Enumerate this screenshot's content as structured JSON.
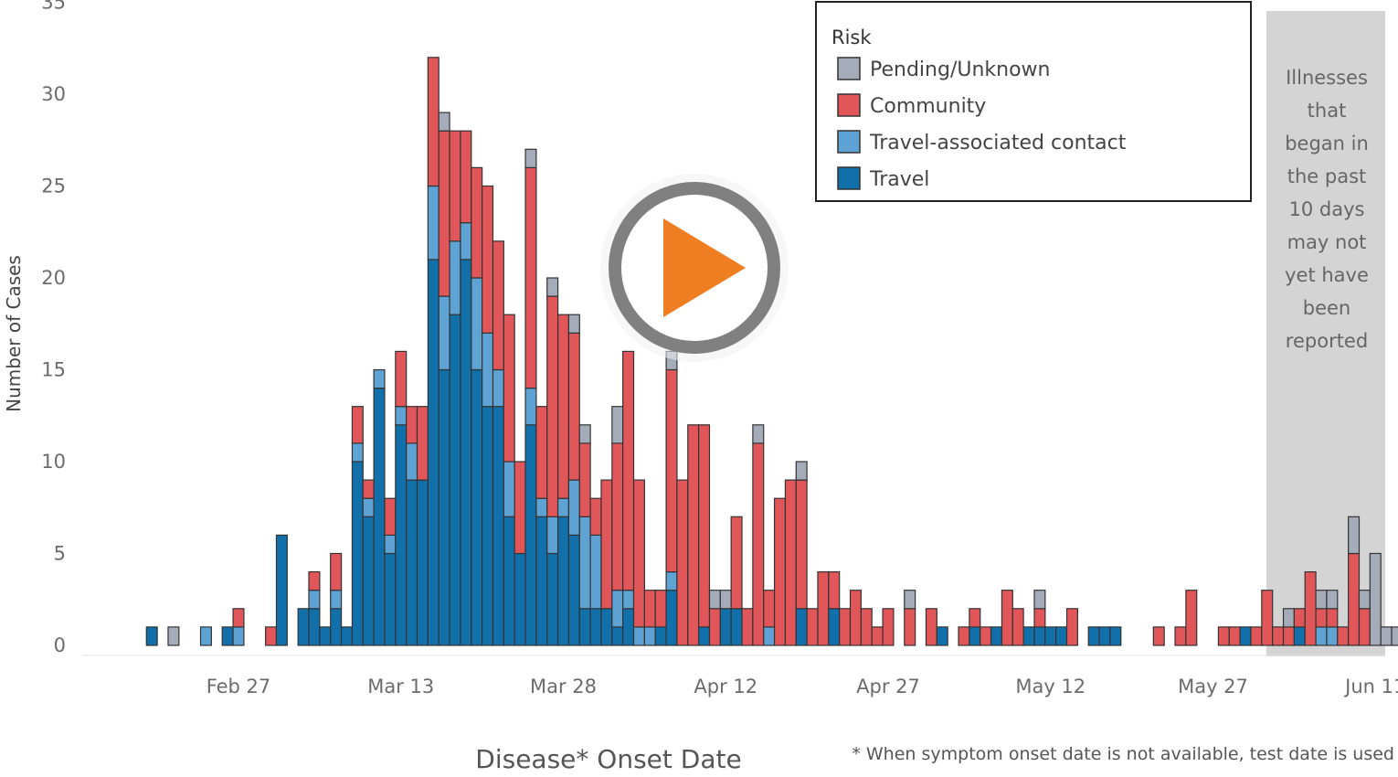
{
  "chart_data": {
    "type": "bar",
    "stacked": true,
    "title": "",
    "xlabel": "Disease* Onset Date",
    "ylabel": "Number of Cases",
    "footnote": "* When symptom onset date is not available, test date is used",
    "ylim": [
      0,
      35
    ],
    "y_ticks": [
      0,
      5,
      10,
      15,
      20,
      25,
      30,
      35
    ],
    "x_range": [
      "2020-02-17",
      "2020-06-12"
    ],
    "x_ticks": [
      {
        "date": "2020-02-27",
        "label": "Feb 27"
      },
      {
        "date": "2020-03-13",
        "label": "Mar 13"
      },
      {
        "date": "2020-03-28",
        "label": "Mar 28"
      },
      {
        "date": "2020-04-12",
        "label": "Apr 12"
      },
      {
        "date": "2020-04-27",
        "label": "Apr 27"
      },
      {
        "date": "2020-05-12",
        "label": "May 12"
      },
      {
        "date": "2020-05-27",
        "label": "May 27"
      },
      {
        "date": "2020-06-11",
        "label": "Jun 11"
      }
    ],
    "grid": false,
    "legend": {
      "title": "Risk",
      "position": "top-right",
      "entries": [
        {
          "name": "Pending/Unknown",
          "color": "#a4acb9"
        },
        {
          "name": "Community",
          "color": "#e15759"
        },
        {
          "name": "Travel-associated contact",
          "color": "#5fa2d4"
        },
        {
          "name": "Travel",
          "color": "#1170aa"
        }
      ]
    },
    "series_keys": [
      "Travel",
      "Travel-associated contact",
      "Community",
      "Pending/Unknown"
    ],
    "series_colors": {
      "Travel": "#1170aa",
      "Travel-associated contact": "#5fa2d4",
      "Community": "#e15759",
      "Pending/Unknown": "#a4acb9"
    },
    "reporting_window": {
      "start": "2020-06-02",
      "end": "2020-06-12",
      "text": [
        "Illnesses",
        "that",
        "began in",
        "the past",
        "10 days",
        "may not",
        "yet have",
        "been",
        "reported"
      ]
    },
    "bars": [
      {
        "date": "2020-02-19",
        "Travel": 1,
        "Travel-associated contact": 0,
        "Community": 0,
        "Pending/Unknown": 0
      },
      {
        "date": "2020-02-21",
        "Travel": 0,
        "Travel-associated contact": 0,
        "Community": 0,
        "Pending/Unknown": 1
      },
      {
        "date": "2020-02-24",
        "Travel": 0,
        "Travel-associated contact": 1,
        "Community": 0,
        "Pending/Unknown": 0
      },
      {
        "date": "2020-02-26",
        "Travel": 1,
        "Travel-associated contact": 0,
        "Community": 0,
        "Pending/Unknown": 0
      },
      {
        "date": "2020-02-27",
        "Travel": 0,
        "Travel-associated contact": 1,
        "Community": 1,
        "Pending/Unknown": 0
      },
      {
        "date": "2020-03-01",
        "Travel": 0,
        "Travel-associated contact": 0,
        "Community": 1,
        "Pending/Unknown": 0
      },
      {
        "date": "2020-03-02",
        "Travel": 6,
        "Travel-associated contact": 0,
        "Community": 0,
        "Pending/Unknown": 0
      },
      {
        "date": "2020-03-04",
        "Travel": 2,
        "Travel-associated contact": 0,
        "Community": 0,
        "Pending/Unknown": 0
      },
      {
        "date": "2020-03-05",
        "Travel": 2,
        "Travel-associated contact": 1,
        "Community": 1,
        "Pending/Unknown": 0
      },
      {
        "date": "2020-03-06",
        "Travel": 1,
        "Travel-associated contact": 0,
        "Community": 0,
        "Pending/Unknown": 0
      },
      {
        "date": "2020-03-07",
        "Travel": 2,
        "Travel-associated contact": 1,
        "Community": 2,
        "Pending/Unknown": 0
      },
      {
        "date": "2020-03-08",
        "Travel": 1,
        "Travel-associated contact": 0,
        "Community": 0,
        "Pending/Unknown": 0
      },
      {
        "date": "2020-03-09",
        "Travel": 10,
        "Travel-associated contact": 1,
        "Community": 2,
        "Pending/Unknown": 0
      },
      {
        "date": "2020-03-10",
        "Travel": 7,
        "Travel-associated contact": 1,
        "Community": 1,
        "Pending/Unknown": 0
      },
      {
        "date": "2020-03-11",
        "Travel": 14,
        "Travel-associated contact": 1,
        "Community": 0,
        "Pending/Unknown": 0
      },
      {
        "date": "2020-03-12",
        "Travel": 5,
        "Travel-associated contact": 1,
        "Community": 2,
        "Pending/Unknown": 0
      },
      {
        "date": "2020-03-13",
        "Travel": 12,
        "Travel-associated contact": 1,
        "Community": 3,
        "Pending/Unknown": 0
      },
      {
        "date": "2020-03-14",
        "Travel": 9,
        "Travel-associated contact": 2,
        "Community": 2,
        "Pending/Unknown": 0
      },
      {
        "date": "2020-03-15",
        "Travel": 9,
        "Travel-associated contact": 0,
        "Community": 4,
        "Pending/Unknown": 0
      },
      {
        "date": "2020-03-16",
        "Travel": 21,
        "Travel-associated contact": 4,
        "Community": 7,
        "Pending/Unknown": 0
      },
      {
        "date": "2020-03-17",
        "Travel": 15,
        "Travel-associated contact": 4,
        "Community": 9,
        "Pending/Unknown": 1
      },
      {
        "date": "2020-03-18",
        "Travel": 18,
        "Travel-associated contact": 4,
        "Community": 6,
        "Pending/Unknown": 0
      },
      {
        "date": "2020-03-19",
        "Travel": 21,
        "Travel-associated contact": 2,
        "Community": 5,
        "Pending/Unknown": 0
      },
      {
        "date": "2020-03-20",
        "Travel": 15,
        "Travel-associated contact": 5,
        "Community": 6,
        "Pending/Unknown": 0
      },
      {
        "date": "2020-03-21",
        "Travel": 13,
        "Travel-associated contact": 4,
        "Community": 8,
        "Pending/Unknown": 0
      },
      {
        "date": "2020-03-22",
        "Travel": 13,
        "Travel-associated contact": 2,
        "Community": 7,
        "Pending/Unknown": 0
      },
      {
        "date": "2020-03-23",
        "Travel": 7,
        "Travel-associated contact": 3,
        "Community": 8,
        "Pending/Unknown": 0
      },
      {
        "date": "2020-03-24",
        "Travel": 5,
        "Travel-associated contact": 0,
        "Community": 5,
        "Pending/Unknown": 0
      },
      {
        "date": "2020-03-25",
        "Travel": 12,
        "Travel-associated contact": 2,
        "Community": 12,
        "Pending/Unknown": 1
      },
      {
        "date": "2020-03-26",
        "Travel": 7,
        "Travel-associated contact": 1,
        "Community": 5,
        "Pending/Unknown": 0
      },
      {
        "date": "2020-03-27",
        "Travel": 5,
        "Travel-associated contact": 2,
        "Community": 12,
        "Pending/Unknown": 1
      },
      {
        "date": "2020-03-28",
        "Travel": 7,
        "Travel-associated contact": 1,
        "Community": 10,
        "Pending/Unknown": 0
      },
      {
        "date": "2020-03-29",
        "Travel": 6,
        "Travel-associated contact": 3,
        "Community": 8,
        "Pending/Unknown": 1
      },
      {
        "date": "2020-03-30",
        "Travel": 2,
        "Travel-associated contact": 5,
        "Community": 4,
        "Pending/Unknown": 1
      },
      {
        "date": "2020-03-31",
        "Travel": 2,
        "Travel-associated contact": 4,
        "Community": 2,
        "Pending/Unknown": 0
      },
      {
        "date": "2020-04-01",
        "Travel": 2,
        "Travel-associated contact": 0,
        "Community": 7,
        "Pending/Unknown": 0
      },
      {
        "date": "2020-04-02",
        "Travel": 1,
        "Travel-associated contact": 2,
        "Community": 8,
        "Pending/Unknown": 2
      },
      {
        "date": "2020-04-03",
        "Travel": 2,
        "Travel-associated contact": 1,
        "Community": 13,
        "Pending/Unknown": 0
      },
      {
        "date": "2020-04-04",
        "Travel": 0,
        "Travel-associated contact": 1,
        "Community": 8,
        "Pending/Unknown": 0
      },
      {
        "date": "2020-04-05",
        "Travel": 0,
        "Travel-associated contact": 1,
        "Community": 2,
        "Pending/Unknown": 0
      },
      {
        "date": "2020-04-06",
        "Travel": 1,
        "Travel-associated contact": 0,
        "Community": 2,
        "Pending/Unknown": 0
      },
      {
        "date": "2020-04-07",
        "Travel": 3,
        "Travel-associated contact": 1,
        "Community": 11,
        "Pending/Unknown": 1
      },
      {
        "date": "2020-04-08",
        "Travel": 0,
        "Travel-associated contact": 0,
        "Community": 9,
        "Pending/Unknown": 0
      },
      {
        "date": "2020-04-09",
        "Travel": 0,
        "Travel-associated contact": 0,
        "Community": 12,
        "Pending/Unknown": 0
      },
      {
        "date": "2020-04-10",
        "Travel": 1,
        "Travel-associated contact": 0,
        "Community": 11,
        "Pending/Unknown": 0
      },
      {
        "date": "2020-04-11",
        "Travel": 0,
        "Travel-associated contact": 0,
        "Community": 2,
        "Pending/Unknown": 1
      },
      {
        "date": "2020-04-12",
        "Travel": 2,
        "Travel-associated contact": 0,
        "Community": 0,
        "Pending/Unknown": 1
      },
      {
        "date": "2020-04-13",
        "Travel": 2,
        "Travel-associated contact": 0,
        "Community": 5,
        "Pending/Unknown": 0
      },
      {
        "date": "2020-04-14",
        "Travel": 0,
        "Travel-associated contact": 0,
        "Community": 2,
        "Pending/Unknown": 0
      },
      {
        "date": "2020-04-15",
        "Travel": 0,
        "Travel-associated contact": 0,
        "Community": 11,
        "Pending/Unknown": 1
      },
      {
        "date": "2020-04-16",
        "Travel": 0,
        "Travel-associated contact": 1,
        "Community": 2,
        "Pending/Unknown": 0
      },
      {
        "date": "2020-04-17",
        "Travel": 0,
        "Travel-associated contact": 0,
        "Community": 8,
        "Pending/Unknown": 0
      },
      {
        "date": "2020-04-18",
        "Travel": 0,
        "Travel-associated contact": 0,
        "Community": 9,
        "Pending/Unknown": 0
      },
      {
        "date": "2020-04-19",
        "Travel": 2,
        "Travel-associated contact": 0,
        "Community": 7,
        "Pending/Unknown": 1
      },
      {
        "date": "2020-04-20",
        "Travel": 0,
        "Travel-associated contact": 0,
        "Community": 2,
        "Pending/Unknown": 0
      },
      {
        "date": "2020-04-21",
        "Travel": 0,
        "Travel-associated contact": 0,
        "Community": 4,
        "Pending/Unknown": 0
      },
      {
        "date": "2020-04-22",
        "Travel": 2,
        "Travel-associated contact": 0,
        "Community": 2,
        "Pending/Unknown": 0
      },
      {
        "date": "2020-04-23",
        "Travel": 0,
        "Travel-associated contact": 0,
        "Community": 2,
        "Pending/Unknown": 0
      },
      {
        "date": "2020-04-24",
        "Travel": 0,
        "Travel-associated contact": 0,
        "Community": 3,
        "Pending/Unknown": 0
      },
      {
        "date": "2020-04-25",
        "Travel": 0,
        "Travel-associated contact": 0,
        "Community": 2,
        "Pending/Unknown": 0
      },
      {
        "date": "2020-04-26",
        "Travel": 0,
        "Travel-associated contact": 0,
        "Community": 1,
        "Pending/Unknown": 0
      },
      {
        "date": "2020-04-27",
        "Travel": 0,
        "Travel-associated contact": 0,
        "Community": 2,
        "Pending/Unknown": 0
      },
      {
        "date": "2020-04-29",
        "Travel": 0,
        "Travel-associated contact": 0,
        "Community": 2,
        "Pending/Unknown": 1
      },
      {
        "date": "2020-05-01",
        "Travel": 0,
        "Travel-associated contact": 0,
        "Community": 2,
        "Pending/Unknown": 0
      },
      {
        "date": "2020-05-02",
        "Travel": 1,
        "Travel-associated contact": 0,
        "Community": 0,
        "Pending/Unknown": 0
      },
      {
        "date": "2020-05-04",
        "Travel": 0,
        "Travel-associated contact": 0,
        "Community": 1,
        "Pending/Unknown": 0
      },
      {
        "date": "2020-05-05",
        "Travel": 1,
        "Travel-associated contact": 0,
        "Community": 1,
        "Pending/Unknown": 0
      },
      {
        "date": "2020-05-06",
        "Travel": 0,
        "Travel-associated contact": 0,
        "Community": 1,
        "Pending/Unknown": 0
      },
      {
        "date": "2020-05-07",
        "Travel": 1,
        "Travel-associated contact": 0,
        "Community": 0,
        "Pending/Unknown": 0
      },
      {
        "date": "2020-05-08",
        "Travel": 0,
        "Travel-associated contact": 0,
        "Community": 3,
        "Pending/Unknown": 0
      },
      {
        "date": "2020-05-09",
        "Travel": 0,
        "Travel-associated contact": 0,
        "Community": 2,
        "Pending/Unknown": 0
      },
      {
        "date": "2020-05-10",
        "Travel": 1,
        "Travel-associated contact": 0,
        "Community": 0,
        "Pending/Unknown": 0
      },
      {
        "date": "2020-05-11",
        "Travel": 1,
        "Travel-associated contact": 0,
        "Community": 1,
        "Pending/Unknown": 1
      },
      {
        "date": "2020-05-12",
        "Travel": 1,
        "Travel-associated contact": 0,
        "Community": 0,
        "Pending/Unknown": 0
      },
      {
        "date": "2020-05-13",
        "Travel": 1,
        "Travel-associated contact": 0,
        "Community": 0,
        "Pending/Unknown": 0
      },
      {
        "date": "2020-05-14",
        "Travel": 0,
        "Travel-associated contact": 0,
        "Community": 2,
        "Pending/Unknown": 0
      },
      {
        "date": "2020-05-16",
        "Travel": 1,
        "Travel-associated contact": 0,
        "Community": 0,
        "Pending/Unknown": 0
      },
      {
        "date": "2020-05-17",
        "Travel": 1,
        "Travel-associated contact": 0,
        "Community": 0,
        "Pending/Unknown": 0
      },
      {
        "date": "2020-05-18",
        "Travel": 1,
        "Travel-associated contact": 0,
        "Community": 0,
        "Pending/Unknown": 0
      },
      {
        "date": "2020-05-22",
        "Travel": 0,
        "Travel-associated contact": 0,
        "Community": 1,
        "Pending/Unknown": 0
      },
      {
        "date": "2020-05-24",
        "Travel": 0,
        "Travel-associated contact": 0,
        "Community": 1,
        "Pending/Unknown": 0
      },
      {
        "date": "2020-05-25",
        "Travel": 0,
        "Travel-associated contact": 0,
        "Community": 3,
        "Pending/Unknown": 0
      },
      {
        "date": "2020-05-28",
        "Travel": 0,
        "Travel-associated contact": 0,
        "Community": 1,
        "Pending/Unknown": 0
      },
      {
        "date": "2020-05-29",
        "Travel": 0,
        "Travel-associated contact": 0,
        "Community": 1,
        "Pending/Unknown": 0
      },
      {
        "date": "2020-05-30",
        "Travel": 1,
        "Travel-associated contact": 0,
        "Community": 0,
        "Pending/Unknown": 0
      },
      {
        "date": "2020-05-31",
        "Travel": 0,
        "Travel-associated contact": 0,
        "Community": 1,
        "Pending/Unknown": 0
      },
      {
        "date": "2020-06-01",
        "Travel": 0,
        "Travel-associated contact": 0,
        "Community": 3,
        "Pending/Unknown": 0
      },
      {
        "date": "2020-06-02",
        "Travel": 0,
        "Travel-associated contact": 0,
        "Community": 1,
        "Pending/Unknown": 0
      },
      {
        "date": "2020-06-03",
        "Travel": 0,
        "Travel-associated contact": 0,
        "Community": 1,
        "Pending/Unknown": 1
      },
      {
        "date": "2020-06-04",
        "Travel": 1,
        "Travel-associated contact": 0,
        "Community": 1,
        "Pending/Unknown": 0
      },
      {
        "date": "2020-06-05",
        "Travel": 0,
        "Travel-associated contact": 0,
        "Community": 4,
        "Pending/Unknown": 0
      },
      {
        "date": "2020-06-06",
        "Travel": 0,
        "Travel-associated contact": 1,
        "Community": 1,
        "Pending/Unknown": 1
      },
      {
        "date": "2020-06-07",
        "Travel": 0,
        "Travel-associated contact": 1,
        "Community": 1,
        "Pending/Unknown": 1
      },
      {
        "date": "2020-06-08",
        "Travel": 0,
        "Travel-associated contact": 0,
        "Community": 1,
        "Pending/Unknown": 0
      },
      {
        "date": "2020-06-09",
        "Travel": 0,
        "Travel-associated contact": 0,
        "Community": 5,
        "Pending/Unknown": 2
      },
      {
        "date": "2020-06-10",
        "Travel": 0,
        "Travel-associated contact": 0,
        "Community": 2,
        "Pending/Unknown": 1
      },
      {
        "date": "2020-06-11",
        "Travel": 0,
        "Travel-associated contact": 0,
        "Community": 0,
        "Pending/Unknown": 5
      },
      {
        "date": "2020-06-12",
        "Travel": 0,
        "Travel-associated contact": 0,
        "Community": 0,
        "Pending/Unknown": 1
      },
      {
        "date": "2020-06-13",
        "Travel": 0,
        "Travel-associated contact": 0,
        "Community": 0,
        "Pending/Unknown": 1
      }
    ]
  },
  "player": {
    "play_icon": "play-icon",
    "ring_color": "#808080",
    "arrow_color": "#ef7d22"
  }
}
